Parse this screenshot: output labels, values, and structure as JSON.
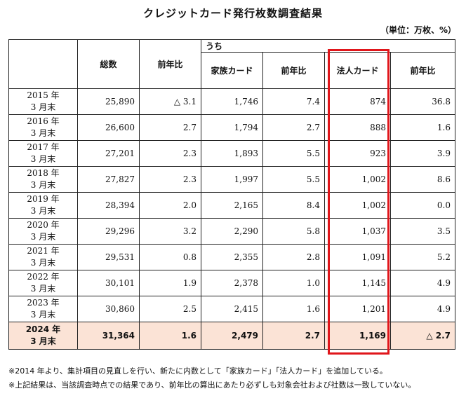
{
  "title": "クレジットカード発行枚数調査結果",
  "unit": "（単位：万枚、%）",
  "header": {
    "total": "総数",
    "yoy": "前年比",
    "uchi": "うち",
    "family": "家族カード",
    "family_yoy": "前年比",
    "corp": "法人カード",
    "corp_yoy": "前年比"
  },
  "rows": [
    {
      "y1": "2015 年",
      "y2": "3 月末",
      "total": "25,890",
      "yoy": "△ 3.1",
      "family": "1,746",
      "fyoy": "7.4",
      "corp": "874",
      "cyoy": "36.8"
    },
    {
      "y1": "2016 年",
      "y2": "3 月末",
      "total": "26,600",
      "yoy": "2.7",
      "family": "1,794",
      "fyoy": "2.7",
      "corp": "888",
      "cyoy": "1.6"
    },
    {
      "y1": "2017 年",
      "y2": "3 月末",
      "total": "27,201",
      "yoy": "2.3",
      "family": "1,893",
      "fyoy": "5.5",
      "corp": "923",
      "cyoy": "3.9"
    },
    {
      "y1": "2018 年",
      "y2": "3 月末",
      "total": "27,827",
      "yoy": "2.3",
      "family": "1,997",
      "fyoy": "5.5",
      "corp": "1,002",
      "cyoy": "8.6"
    },
    {
      "y1": "2019 年",
      "y2": "3 月末",
      "total": "28,394",
      "yoy": "2.0",
      "family": "2,165",
      "fyoy": "8.4",
      "corp": "1,002",
      "cyoy": "0.0"
    },
    {
      "y1": "2020 年",
      "y2": "3 月末",
      "total": "29,296",
      "yoy": "3.2",
      "family": "2,290",
      "fyoy": "5.8",
      "corp": "1,037",
      "cyoy": "3.5"
    },
    {
      "y1": "2021 年",
      "y2": "3 月末",
      "total": "29,531",
      "yoy": "0.8",
      "family": "2,355",
      "fyoy": "2.8",
      "corp": "1,091",
      "cyoy": "5.2"
    },
    {
      "y1": "2022 年",
      "y2": "3 月末",
      "total": "30,101",
      "yoy": "1.9",
      "family": "2,378",
      "fyoy": "1.0",
      "corp": "1,145",
      "cyoy": "4.9"
    },
    {
      "y1": "2023 年",
      "y2": "3 月末",
      "total": "30,860",
      "yoy": "2.5",
      "family": "2,415",
      "fyoy": "1.6",
      "corp": "1,201",
      "cyoy": "4.9"
    },
    {
      "y1": "2024 年",
      "y2": "3 月末",
      "total": "31,364",
      "yoy": "1.6",
      "family": "2,479",
      "fyoy": "2.7",
      "corp": "1,169",
      "cyoy": "△ 2.7"
    }
  ],
  "notes": [
    "※2014 年より、集計項目の見直しを行い、新たに内数として「家族カード」「法人カード」を追加している。",
    "※上記結果は、当該調査時点での結果であり、前年比の算出にあたり必ずしも対象会社および社数は一致していない。"
  ],
  "highlight_color": "#e0161b",
  "last_row_color": "#fbe3d6"
}
